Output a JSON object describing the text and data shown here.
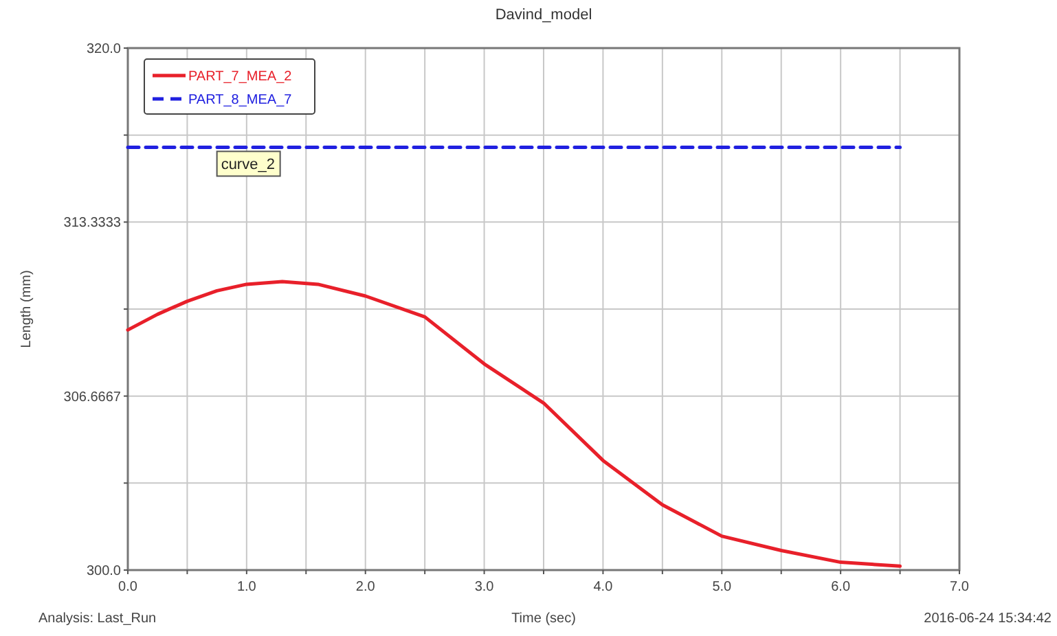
{
  "chart_data": {
    "type": "line",
    "title": "Davind_model",
    "xlabel": "Time (sec)",
    "ylabel": "Length (mm)",
    "xlim": [
      0,
      7
    ],
    "ylim": [
      300,
      320
    ],
    "xticks": [
      {
        "value": 0,
        "label": "0.0"
      },
      {
        "value": 0.5,
        "label": null
      },
      {
        "value": 1,
        "label": "1.0"
      },
      {
        "value": 1.5,
        "label": null
      },
      {
        "value": 2,
        "label": "2.0"
      },
      {
        "value": 2.5,
        "label": null
      },
      {
        "value": 3,
        "label": "3.0"
      },
      {
        "value": 3.5,
        "label": null
      },
      {
        "value": 4,
        "label": "4.0"
      },
      {
        "value": 4.5,
        "label": null
      },
      {
        "value": 5,
        "label": "5.0"
      },
      {
        "value": 5.5,
        "label": null
      },
      {
        "value": 6,
        "label": "6.0"
      },
      {
        "value": 6.5,
        "label": null
      },
      {
        "value": 7,
        "label": "7.0"
      }
    ],
    "yticks": [
      {
        "value": 300,
        "label": "300.0"
      },
      {
        "value": 303.3333,
        "label": null
      },
      {
        "value": 306.6667,
        "label": "306.6667"
      },
      {
        "value": 310,
        "label": null
      },
      {
        "value": 313.3333,
        "label": "313.3333"
      },
      {
        "value": 316.6667,
        "label": null
      },
      {
        "value": 320,
        "label": "320.0"
      }
    ],
    "grid": true,
    "legend": "top left",
    "series": [
      {
        "name": "PART_7_MEA_2",
        "color": "#e8202a",
        "line_style": "solid",
        "x": [
          0,
          0.25,
          0.5,
          0.75,
          1.0,
          1.3,
          1.6,
          2.0,
          2.5,
          3.0,
          3.5,
          4.0,
          4.5,
          5.0,
          5.5,
          6.0,
          6.5
        ],
        "values": [
          309.2,
          309.8,
          310.3,
          310.7,
          310.95,
          311.05,
          310.95,
          310.5,
          309.7,
          307.9,
          306.4,
          304.2,
          302.5,
          301.3,
          300.75,
          300.3,
          300.15
        ]
      },
      {
        "name": "PART_8_MEA_7",
        "color": "#2020e0",
        "line_style": "dashed",
        "x": [
          0,
          6.5
        ],
        "values": [
          316.2,
          316.2
        ]
      }
    ],
    "annotations": [
      {
        "text": "curve_2",
        "x": 0.75,
        "y": 316.2
      },
      "Analysis:  Last_Run",
      "2016-06-24 15:34:42"
    ]
  }
}
